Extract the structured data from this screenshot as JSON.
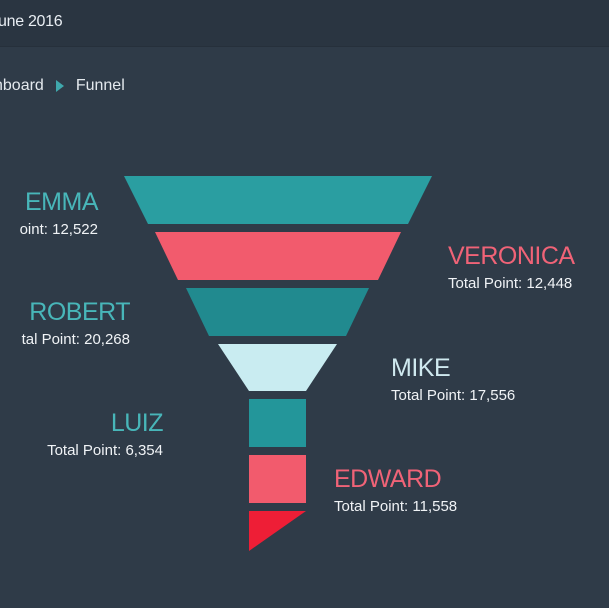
{
  "header": {
    "date": "une 2016"
  },
  "breadcrumb": {
    "parent": "hboard",
    "current": "Funnel"
  },
  "chart_data": {
    "type": "funnel",
    "stages": [
      {
        "name": "EMMA",
        "points_label": "oint: 12,522",
        "value": 12522,
        "color": "#2a9ea1"
      },
      {
        "name": "VERONICA",
        "points_label": "Total Point: 12,448",
        "value": 12448,
        "color": "#f25b6d"
      },
      {
        "name": "ROBERT",
        "points_label": "tal Point: 20,268",
        "value": 20268,
        "color": "#218a8f"
      },
      {
        "name": "MIKE",
        "points_label": "Total Point: 17,556",
        "value": 17556,
        "color": "#c9ecf1"
      },
      {
        "name": "LUIZ",
        "points_label": "Total Point: 6,354",
        "value": 6354,
        "color": "#23969a"
      },
      {
        "name": "EDWARD",
        "points_label": "Total Point: 11,558",
        "value": 11558,
        "color": "#f25b6d"
      }
    ],
    "tip_color": "#ee1e36"
  }
}
